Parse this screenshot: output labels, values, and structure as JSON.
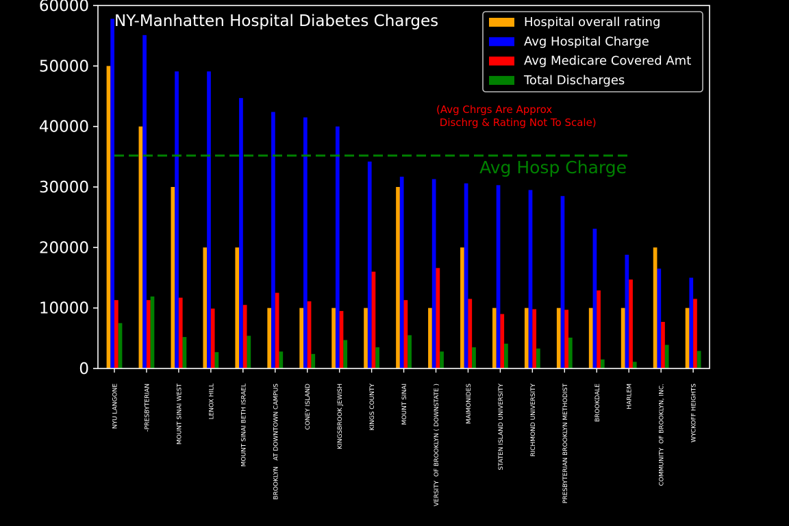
{
  "chart_data": {
    "type": "bar",
    "title": "NY-Manhatten Hospital Diabetes Charges",
    "xlabel": "",
    "ylabel": "",
    "ylim": [
      0,
      60000
    ],
    "yticks": [
      0,
      10000,
      20000,
      30000,
      40000,
      50000,
      60000
    ],
    "grid": false,
    "legend_position": "top-right",
    "categories": [
      "NYU LANGONE",
      "-PRESBYTERIAN",
      "MOUNT SINAI WEST",
      "LENOX HILL",
      "MOUNT SINAI BETH ISRAEL",
      "BROOKLYN   AT DOWNTOWN CAMPUS",
      "CONEY ISLAND",
      "KINGSBROOK JEWISH",
      "KINGS COUNTY",
      "MOUNT SINAI",
      "VERSITY  OF BROOKLYN ( DOWNSTATE )",
      "MAIMONIDES",
      "STATEN ISLAND UNIVERSITY",
      "RICHMOND UNIVERSITY",
      "PRESBYTERIAN BROOKLYN METHODIST",
      "BROOKDALE",
      "HARLEM",
      "COMMUNITY  OF BROOKLYN, INC.",
      "WYCKOFF HEIGHTS"
    ],
    "series": [
      {
        "name": "Hospital overall rating",
        "color": "#ffa500",
        "values": [
          50000,
          40000,
          30000,
          20000,
          20000,
          10000,
          10000,
          10000,
          10000,
          30000,
          10000,
          20000,
          10000,
          10000,
          10000,
          10000,
          10000,
          20000,
          10000
        ]
      },
      {
        "name": "Avg Hospital Charge",
        "color": "#0000ff",
        "values": [
          57800,
          55100,
          49100,
          49100,
          44700,
          42400,
          41500,
          40000,
          34200,
          31700,
          31300,
          30600,
          30300,
          29500,
          28500,
          23100,
          18800,
          16500,
          15000
        ]
      },
      {
        "name": "Avg Medicare Covered Amt",
        "color": "#ff0000",
        "values": [
          11300,
          11300,
          11700,
          9900,
          10500,
          12500,
          11100,
          9500,
          16000,
          11300,
          16600,
          11500,
          9000,
          9800,
          9700,
          12900,
          14700,
          7700,
          11500
        ]
      },
      {
        "name": "Total Discharges",
        "color": "#008000",
        "values": [
          7500,
          11900,
          5200,
          2700,
          5400,
          2800,
          2400,
          4700,
          3500,
          5500,
          2800,
          3500,
          4100,
          3300,
          5100,
          1500,
          1100,
          3900,
          2900
        ]
      }
    ],
    "reference_line": {
      "value": 35200,
      "label": "Avg Hosp Charge",
      "color": "#008000"
    },
    "annotation": {
      "line1": "(Avg Chrgs Are Approx",
      "line2": " Dischrg & Rating Not To Scale)",
      "color": "#ff0000"
    }
  }
}
